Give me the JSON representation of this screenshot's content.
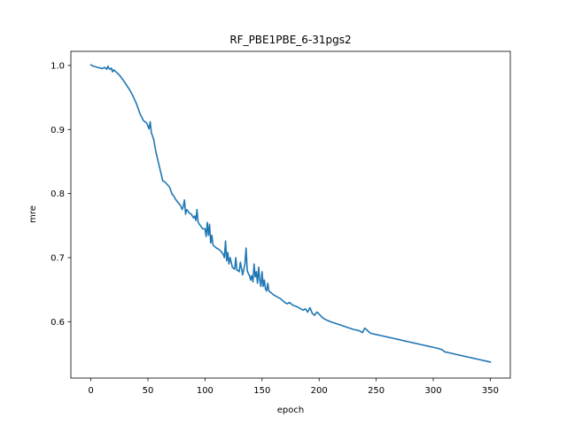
{
  "chart_data": {
    "type": "line",
    "title": "RF_PBE1PBE_6-31pgs2",
    "xlabel": "epoch",
    "ylabel": "mre",
    "xlim": [
      -17.5,
      367.5
    ],
    "ylim": [
      0.512,
      1.022
    ],
    "grid": false,
    "xticks": [
      0,
      50,
      100,
      150,
      200,
      250,
      300,
      350
    ],
    "yticks": [
      0.6,
      0.7,
      0.8,
      0.9,
      1.0
    ],
    "xtick_labels": [
      "0",
      "50",
      "100",
      "150",
      "200",
      "250",
      "300",
      "350"
    ],
    "ytick_labels": [
      "0.6",
      "0.7",
      "0.8",
      "0.9",
      "1.0"
    ],
    "series": [
      {
        "color": "#1f77b4",
        "x": [
          0,
          2,
          4,
          6,
          8,
          10,
          12,
          14,
          15,
          16,
          17,
          18,
          19,
          20,
          22,
          25,
          28,
          31,
          34,
          37,
          40,
          43,
          46,
          49,
          51,
          52,
          53,
          55,
          57,
          59,
          61,
          63,
          65,
          67,
          69,
          71,
          73,
          75,
          77,
          79,
          80,
          81,
          82,
          83,
          84,
          85,
          86,
          88,
          90,
          91,
          92,
          93,
          94,
          96,
          98,
          100,
          101,
          102,
          103,
          104,
          105,
          106,
          107,
          108,
          110,
          112,
          114,
          116,
          117,
          118,
          119,
          120,
          121,
          122,
          124,
          126,
          127,
          128,
          129,
          130,
          131,
          133,
          135,
          136,
          137,
          138,
          139,
          140,
          141,
          142,
          143,
          144,
          145,
          146,
          147,
          148,
          149,
          150,
          151,
          152,
          153,
          154,
          155,
          156,
          158,
          160,
          162,
          164,
          166,
          168,
          170,
          172,
          174,
          176,
          178,
          180,
          182,
          184,
          186,
          188,
          190,
          192,
          194,
          196,
          198,
          200,
          202,
          204,
          206,
          210,
          215,
          220,
          225,
          230,
          235,
          238,
          240,
          245,
          250,
          255,
          260,
          265,
          270,
          275,
          280,
          285,
          290,
          295,
          300,
          305,
          308,
          310,
          315,
          320,
          325,
          330,
          335,
          340,
          345,
          350
        ],
        "y": [
          1.001,
          0.999,
          0.998,
          0.997,
          0.996,
          0.995,
          0.997,
          0.994,
          0.999,
          0.995,
          0.994,
          0.996,
          0.99,
          0.993,
          0.99,
          0.985,
          0.978,
          0.97,
          0.962,
          0.952,
          0.94,
          0.925,
          0.914,
          0.91,
          0.901,
          0.912,
          0.895,
          0.885,
          0.865,
          0.85,
          0.835,
          0.82,
          0.818,
          0.814,
          0.81,
          0.8,
          0.795,
          0.789,
          0.785,
          0.78,
          0.775,
          0.78,
          0.79,
          0.768,
          0.775,
          0.773,
          0.77,
          0.768,
          0.762,
          0.765,
          0.758,
          0.775,
          0.755,
          0.75,
          0.745,
          0.745,
          0.733,
          0.755,
          0.735,
          0.752,
          0.723,
          0.735,
          0.72,
          0.718,
          0.715,
          0.713,
          0.71,
          0.705,
          0.7,
          0.726,
          0.695,
          0.708,
          0.69,
          0.7,
          0.685,
          0.682,
          0.7,
          0.68,
          0.68,
          0.678,
          0.693,
          0.673,
          0.69,
          0.715,
          0.68,
          0.675,
          0.672,
          0.665,
          0.672,
          0.662,
          0.69,
          0.67,
          0.678,
          0.66,
          0.685,
          0.665,
          0.655,
          0.678,
          0.655,
          0.665,
          0.651,
          0.648,
          0.66,
          0.648,
          0.645,
          0.642,
          0.64,
          0.638,
          0.636,
          0.633,
          0.63,
          0.628,
          0.63,
          0.627,
          0.625,
          0.624,
          0.622,
          0.62,
          0.618,
          0.62,
          0.615,
          0.622,
          0.613,
          0.61,
          0.615,
          0.612,
          0.608,
          0.605,
          0.603,
          0.6,
          0.597,
          0.594,
          0.591,
          0.588,
          0.586,
          0.583,
          0.59,
          0.582,
          0.58,
          0.578,
          0.576,
          0.574,
          0.572,
          0.57,
          0.568,
          0.566,
          0.564,
          0.562,
          0.56,
          0.558,
          0.556,
          0.553,
          0.551,
          0.549,
          0.547,
          0.545,
          0.543,
          0.541,
          0.539,
          0.537
        ]
      }
    ]
  }
}
